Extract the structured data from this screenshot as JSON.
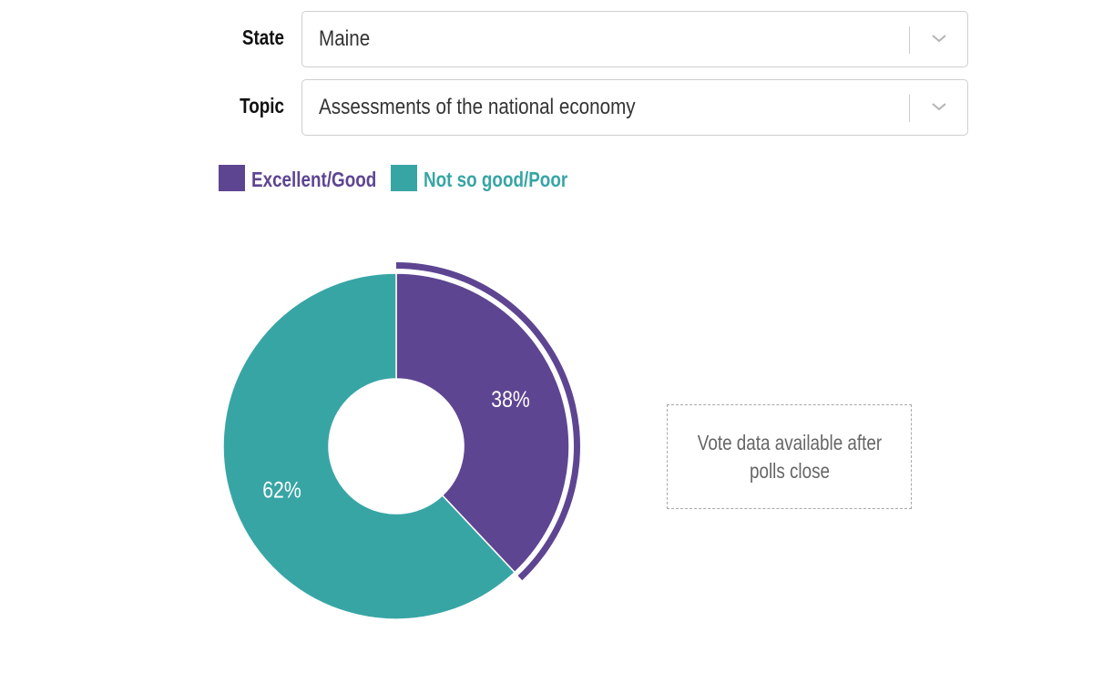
{
  "filters": {
    "state": {
      "label": "State",
      "value": "Maine"
    },
    "topic": {
      "label": "Topic",
      "value": "Assessments of the national economy"
    }
  },
  "colors": {
    "excellent_good": "#5e4592",
    "not_so_good_poor": "#38a5a5",
    "border": "#cfcfcf"
  },
  "icons": {
    "dropdown": "chevron-down-icon"
  },
  "chart_data": {
    "type": "pie",
    "variant": "donut",
    "categories": [
      "Excellent/Good",
      "Not so good/Poor"
    ],
    "values": [
      38,
      62
    ],
    "labels": [
      "38%",
      "62%"
    ],
    "colors": [
      "#5e4592",
      "#38a5a5"
    ],
    "legend": [
      "Excellent/Good",
      "Not so good/Poor"
    ],
    "legend_position": "top-left",
    "highlighted": "Excellent/Good"
  },
  "vote_box": {
    "text": "Vote data available after polls close"
  }
}
